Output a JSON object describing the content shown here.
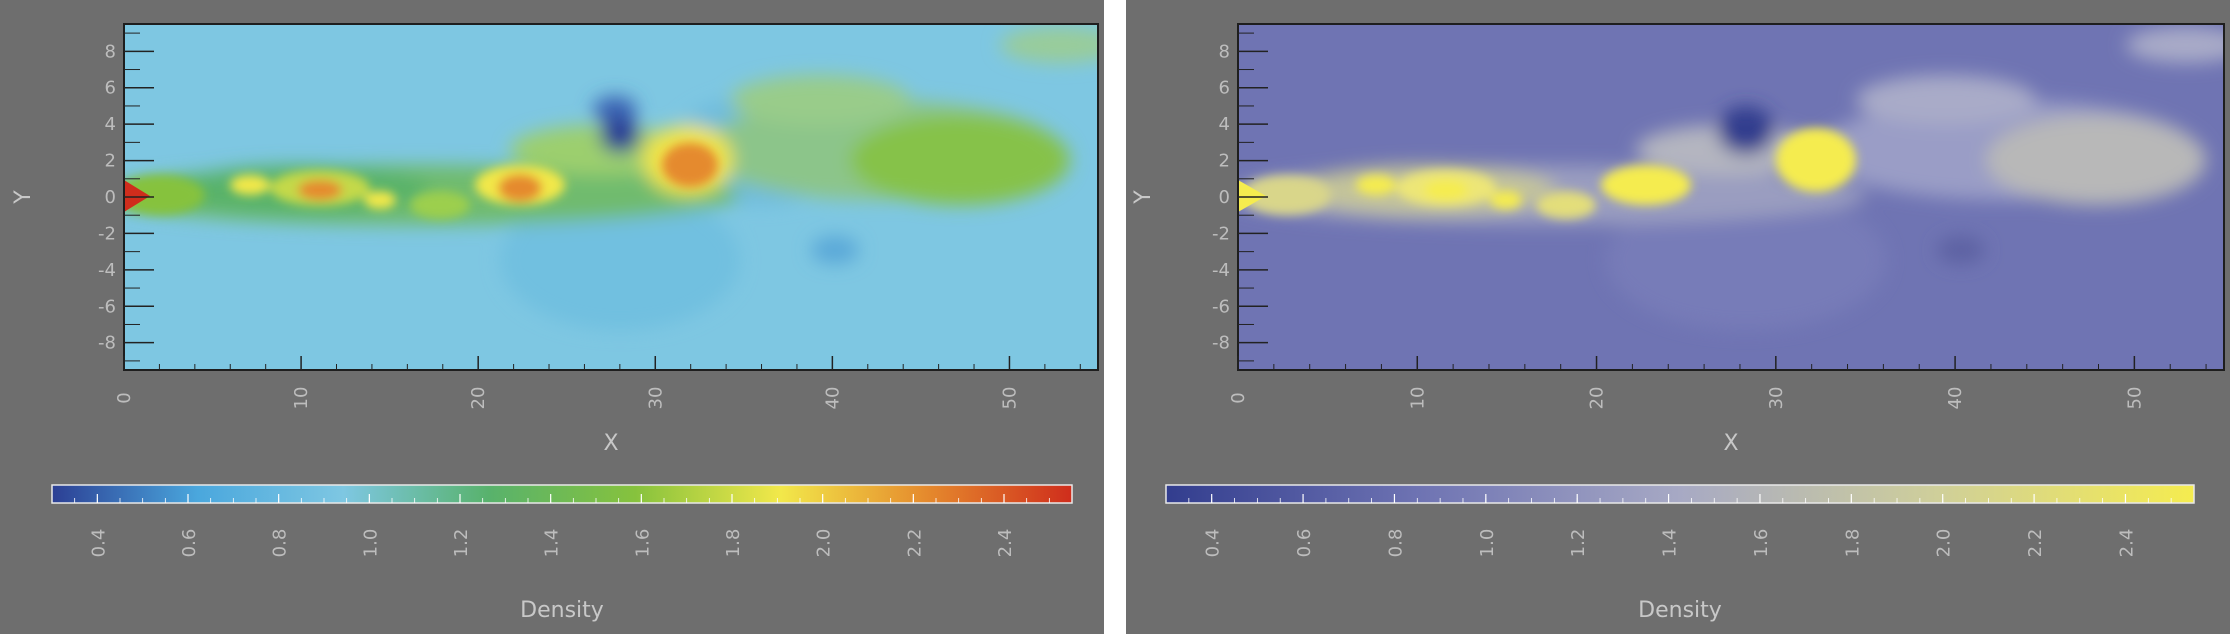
{
  "chart_data": [
    {
      "type": "heatmap",
      "colormap": "rainbow",
      "colors": [
        "#2c3f94",
        "#4aa7dd",
        "#7ec7e2",
        "#58b26c",
        "#86c23d",
        "#f2e84a",
        "#e58a2d",
        "#cf2d1c"
      ],
      "xlabel": "X",
      "ylabel": "Y",
      "xlim": [
        0,
        55
      ],
      "ylim": [
        -9.5,
        9.5
      ],
      "xticks": [
        "0",
        "10",
        "20",
        "30",
        "40",
        "50"
      ],
      "yticks": [
        "8",
        "6",
        "4",
        "2",
        "0",
        "-2",
        "-4",
        "-6",
        "-8"
      ],
      "colorbar": {
        "label": "Density",
        "range": [
          0.3,
          2.55
        ],
        "ticks": [
          "0.4",
          "0.6",
          "0.8",
          "1.0",
          "1.2",
          "1.4",
          "1.6",
          "1.8",
          "2.0",
          "2.2",
          "2.4"
        ]
      }
    },
    {
      "type": "heatmap",
      "colormap": "blue-yellow",
      "colors": [
        "#323d8e",
        "#6f74b3",
        "#a7a9c4",
        "#cfcf9a",
        "#f5ec4f"
      ],
      "xlabel": "X",
      "ylabel": "Y",
      "xlim": [
        0,
        55
      ],
      "ylim": [
        -9.5,
        9.5
      ],
      "xticks": [
        "0",
        "10",
        "20",
        "30",
        "40",
        "50"
      ],
      "yticks": [
        "8",
        "6",
        "4",
        "2",
        "0",
        "-2",
        "-4",
        "-6",
        "-8"
      ],
      "colorbar": {
        "label": "Density",
        "range": [
          0.3,
          2.55
        ],
        "ticks": [
          "0.4",
          "0.6",
          "0.8",
          "1.0",
          "1.2",
          "1.4",
          "1.6",
          "1.8",
          "2.0",
          "2.2",
          "2.4"
        ]
      }
    }
  ]
}
